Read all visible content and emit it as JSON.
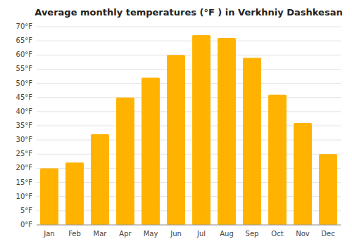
{
  "chart_data": {
    "type": "bar",
    "title": "Average monthly temperatures (°F ) in Verkhniy Dashkesan",
    "categories": [
      "Jan",
      "Feb",
      "Mar",
      "Apr",
      "May",
      "Jun",
      "Jul",
      "Aug",
      "Sep",
      "Oct",
      "Nov",
      "Dec"
    ],
    "values": [
      20,
      22,
      32,
      45,
      52,
      60,
      67,
      66,
      59,
      46,
      36,
      25
    ],
    "color": "#FFB300",
    "ylim": [
      0,
      70
    ],
    "yticks": [
      {
        "value": 0,
        "label": "0°F"
      },
      {
        "value": 5,
        "label": "5°F"
      },
      {
        "value": 10,
        "label": "10°F"
      },
      {
        "value": 15,
        "label": "15°F"
      },
      {
        "value": 20,
        "label": "20°F"
      },
      {
        "value": 25,
        "label": "25°F"
      },
      {
        "value": 30,
        "label": "30°F"
      },
      {
        "value": 35,
        "label": "35°F"
      },
      {
        "value": 40,
        "label": "40°F"
      },
      {
        "value": 45,
        "label": "45°F"
      },
      {
        "value": 50,
        "label": "50°F"
      },
      {
        "value": 55,
        "label": "55°F"
      },
      {
        "value": 60,
        "label": "60°F"
      },
      {
        "value": 65,
        "label": "65°F"
      },
      {
        "value": 70,
        "label": "70°F"
      }
    ],
    "grid": true
  }
}
